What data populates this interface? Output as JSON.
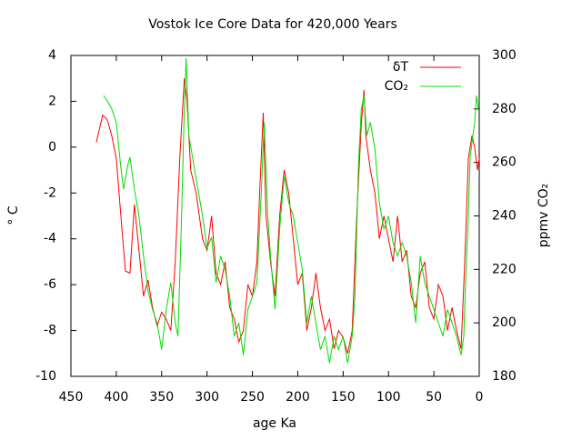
{
  "chart_data": {
    "type": "line",
    "title": "Vostok Ice Core Data for 420,000 Years",
    "xlabel": "age Ka",
    "ylabel": "° C",
    "y2label": "ppmv CO₂",
    "xlim": [
      450,
      0
    ],
    "xticks": [
      450,
      400,
      350,
      300,
      250,
      200,
      150,
      100,
      50,
      0
    ],
    "ylim": [
      -10,
      4
    ],
    "yticks": [
      -10,
      -8,
      -6,
      -4,
      -2,
      0,
      2,
      4
    ],
    "y2lim": [
      180,
      300
    ],
    "y2ticks": [
      180,
      200,
      220,
      240,
      260,
      280,
      300
    ],
    "legend": "top-right",
    "series": [
      {
        "name": "δT",
        "color": "#ff0000",
        "x": [
          422,
          415,
          410,
          405,
          400,
          395,
          390,
          385,
          380,
          375,
          370,
          365,
          360,
          355,
          350,
          345,
          340,
          335,
          330,
          325,
          322,
          318,
          312,
          305,
          300,
          295,
          290,
          285,
          280,
          275,
          270,
          265,
          260,
          255,
          250,
          245,
          242,
          238,
          235,
          230,
          225,
          220,
          215,
          210,
          205,
          200,
          195,
          190,
          185,
          180,
          175,
          170,
          165,
          160,
          155,
          150,
          145,
          140,
          135,
          130,
          127,
          125,
          120,
          115,
          110,
          105,
          100,
          95,
          90,
          85,
          80,
          75,
          70,
          65,
          60,
          55,
          50,
          45,
          40,
          35,
          30,
          25,
          20,
          17,
          15,
          12,
          8,
          5,
          2,
          0
        ],
        "values": [
          0.2,
          1.4,
          1.2,
          0.5,
          -0.5,
          -3,
          -5.4,
          -5.5,
          -2.5,
          -4.5,
          -6.5,
          -5.8,
          -7,
          -7.8,
          -7.2,
          -7.5,
          -8,
          -5,
          -0.5,
          3,
          2,
          -1,
          -2,
          -4,
          -4.5,
          -3,
          -5.5,
          -6,
          -5,
          -7,
          -7.5,
          -8.5,
          -8,
          -6,
          -6.5,
          -5,
          -2,
          1.5,
          -3,
          -5,
          -6.5,
          -3,
          -1,
          -2,
          -4,
          -6,
          -5.5,
          -8,
          -7,
          -5.5,
          -7,
          -8,
          -7.5,
          -8.8,
          -8,
          -8.3,
          -9,
          -8,
          -3,
          1,
          2.5,
          0.5,
          -1,
          -2,
          -4,
          -3,
          -4,
          -5,
          -3,
          -5,
          -4.5,
          -6.5,
          -7,
          -5.5,
          -5,
          -7,
          -7.5,
          -6,
          -6.5,
          -8,
          -7,
          -8,
          -8.8,
          -6,
          -4,
          -0.5,
          0.5,
          0,
          -1,
          -0.5
        ]
      },
      {
        "name": "CO₂",
        "color": "#00dd00",
        "axis": "y2",
        "x": [
          414,
          410,
          405,
          400,
          395,
          392,
          388,
          385,
          380,
          375,
          370,
          365,
          360,
          355,
          350,
          345,
          340,
          335,
          332,
          328,
          325,
          323,
          320,
          315,
          310,
          305,
          300,
          295,
          290,
          285,
          280,
          275,
          270,
          265,
          260,
          255,
          250,
          245,
          240,
          237,
          233,
          230,
          225,
          220,
          215,
          210,
          205,
          200,
          195,
          190,
          185,
          180,
          175,
          170,
          165,
          160,
          155,
          150,
          145,
          140,
          137,
          133,
          130,
          127,
          124,
          120,
          115,
          110,
          105,
          100,
          95,
          90,
          85,
          80,
          75,
          70,
          65,
          60,
          55,
          50,
          45,
          40,
          35,
          30,
          25,
          20,
          17,
          15,
          12,
          10,
          7,
          5,
          3,
          1
        ],
        "values": [
          285,
          283,
          280,
          275,
          258,
          250,
          258,
          262,
          250,
          240,
          225,
          212,
          205,
          200,
          190,
          205,
          215,
          200,
          195,
          240,
          280,
          299,
          270,
          260,
          250,
          240,
          228,
          232,
          215,
          225,
          220,
          210,
          195,
          200,
          188,
          205,
          210,
          215,
          250,
          275,
          240,
          225,
          205,
          235,
          255,
          245,
          240,
          230,
          220,
          200,
          210,
          200,
          190,
          195,
          185,
          195,
          190,
          195,
          185,
          195,
          210,
          260,
          280,
          285,
          270,
          275,
          265,
          245,
          235,
          240,
          230,
          225,
          230,
          225,
          215,
          200,
          225,
          215,
          210,
          205,
          200,
          195,
          205,
          200,
          195,
          188,
          195,
          215,
          240,
          262,
          270,
          275,
          285,
          280
        ]
      }
    ]
  }
}
